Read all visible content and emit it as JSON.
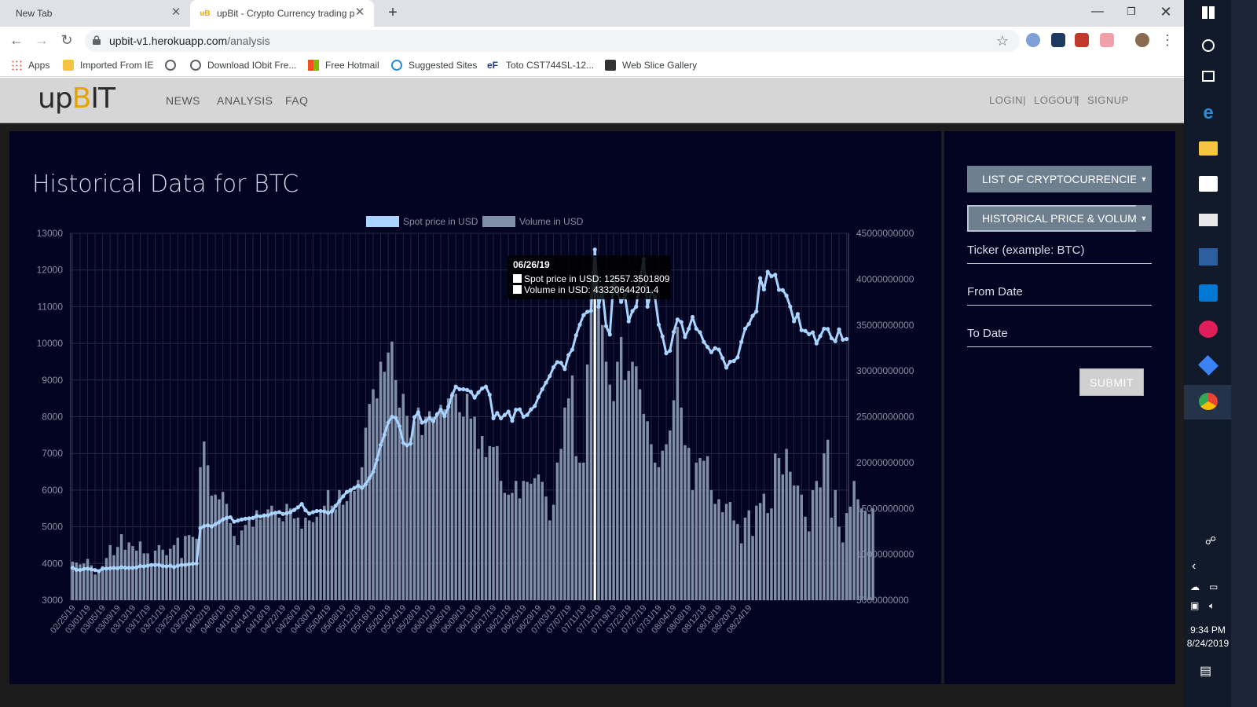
{
  "browser": {
    "tabs": [
      {
        "title": "New Tab"
      },
      {
        "title": "upBit - Crypto Currency trading p"
      }
    ],
    "url_host": "upbit-v1.herokuapp.com",
    "url_path": "/analysis",
    "bookmarks": [
      {
        "label": "Apps"
      },
      {
        "label": "Imported From IE"
      },
      {
        "label": ""
      },
      {
        "label": "Download IObit Fre..."
      },
      {
        "label": "Free Hotmail"
      },
      {
        "label": "Suggested Sites"
      },
      {
        "label": "Toto CST744SL-12..."
      },
      {
        "label": "Web Slice Gallery"
      }
    ]
  },
  "navbar": {
    "logo_up": "up",
    "logo_b": "B",
    "logo_it": "IT",
    "links": [
      "NEWS",
      "ANALYSIS",
      "FAQ"
    ],
    "auth": [
      "LOGIN",
      "LOGOUT",
      "SIGNUP"
    ]
  },
  "chart_panel": {
    "title": "Historical Data for BTC"
  },
  "side_panel": {
    "dropdown1": "LIST OF CRYPTOCURRENCIES",
    "dropdown2": "HISTORICAL PRICE & VOLUME",
    "ticker_placeholder": "Ticker (example: BTC)",
    "from_placeholder": "From Date",
    "to_placeholder": "To Date",
    "submit_label": "SUBMIT"
  },
  "taskbar": {
    "time": "9:34 PM",
    "date": "8/24/2019"
  },
  "colors": {
    "price_line": "#a9d4ff",
    "volume_bar": "#7f8fa6",
    "panel_bg": "#030322",
    "accent": "#e6a400"
  },
  "chart_data": {
    "type": "bar",
    "title": "",
    "legend_position": "top-center",
    "series": [
      {
        "name": "Spot price in USD",
        "type": "line",
        "axis": "left",
        "values": [
          3880,
          3830,
          3820,
          3850,
          3860,
          3840,
          3820,
          3790,
          3860,
          3860,
          3870,
          3880,
          3870,
          3900,
          3880,
          3880,
          3880,
          3890,
          3930,
          3920,
          3940,
          3960,
          3960,
          3960,
          3930,
          3920,
          3940,
          3900,
          3940,
          3960,
          3960,
          3980,
          3990,
          4000,
          4960,
          5020,
          5040,
          5010,
          5070,
          5130,
          5200,
          5240,
          5260,
          5140,
          5170,
          5200,
          5220,
          5230,
          5240,
          5300,
          5280,
          5310,
          5310,
          5360,
          5380,
          5400,
          5350,
          5370,
          5400,
          5460,
          5530,
          5620,
          5450,
          5360,
          5400,
          5430,
          5430,
          5420,
          5380,
          5420,
          5570,
          5700,
          5830,
          5950,
          6000,
          6060,
          6120,
          6060,
          6160,
          6330,
          6500,
          6830,
          7230,
          7510,
          7840,
          8000,
          7970,
          7740,
          7290,
          7220,
          7270,
          7990,
          8120,
          7840,
          7880,
          7970,
          7880,
          8060,
          8190,
          8020,
          8270,
          8580,
          8820,
          8750,
          8750,
          8730,
          8680,
          8520,
          8660,
          8770,
          8820,
          8600,
          7960,
          8100,
          7960,
          8050,
          8140,
          7890,
          8190,
          8200,
          8000,
          8050,
          8200,
          8290,
          8540,
          8750,
          8930,
          9110,
          9350,
          9490,
          9470,
          9300,
          9680,
          9830,
          10220,
          10510,
          10770,
          10860,
          10890,
          12557,
          11000,
          11450,
          10470,
          10240,
          11760,
          11370,
          11130,
          11320,
          10600,
          10880,
          11000,
          11700,
          12300,
          11000,
          11400,
          11260,
          10510,
          10190,
          9730,
          9800,
          10310,
          10650,
          10580,
          10170,
          10400,
          10720,
          10400,
          10300,
          10040,
          9900,
          9760,
          9870,
          9830,
          9600,
          9340,
          9500,
          9520,
          9620,
          10040,
          10400,
          10530,
          10750,
          10870,
          11780,
          11470,
          11950,
          11830,
          11870,
          11460,
          11450,
          11300,
          11000,
          10600,
          10800,
          10360,
          10340,
          10250,
          10300,
          10000,
          10200,
          10400,
          10390,
          10140,
          10060,
          10380,
          10100,
          10120
        ]
      },
      {
        "name": "Volume in USD",
        "type": "bar",
        "axis": "right",
        "values": [
          9200000000,
          9100000000,
          8900000000,
          9000000000,
          9500000000,
          8800000000,
          7800000000,
          8100000000,
          8700000000,
          9600000000,
          11000000000,
          9900000000,
          10800000000,
          12200000000,
          10500000000,
          11300000000,
          10900000000,
          10400000000,
          11400000000,
          10100000000,
          10100000000,
          9000000000,
          10400000000,
          11000000000,
          10500000000,
          9900000000,
          10600000000,
          11000000000,
          11800000000,
          9600000000,
          12000000000,
          12100000000,
          11900000000,
          11700000000,
          19500000000,
          22300000000,
          19700000000,
          16400000000,
          16500000000,
          16000000000,
          16800000000,
          15500000000,
          13400000000,
          12000000000,
          11000000000,
          12600000000,
          13200000000,
          14000000000,
          13000000000,
          14800000000,
          13800000000,
          14200000000,
          14900000000,
          15300000000,
          14600000000,
          14000000000,
          13600000000,
          15500000000,
          15000000000,
          13900000000,
          14000000000,
          12800000000,
          14000000000,
          13700000000,
          13500000000,
          14100000000,
          14500000000,
          15300000000,
          17000000000,
          15300000000,
          14900000000,
          17000000000,
          15400000000,
          15800000000,
          17000000000,
          16900000000,
          18100000000,
          19500000000,
          23800000000,
          26400000000,
          28000000000,
          27000000000,
          31000000000,
          29900000000,
          32000000000,
          33200000000,
          29000000000,
          26000000000,
          27500000000,
          25100000000,
          22700000000,
          24500000000,
          26000000000,
          23000000000,
          25000000000,
          25600000000,
          25000000000,
          25500000000,
          26300000000,
          25800000000,
          27000000000,
          27700000000,
          27500000000,
          25500000000,
          25000000000,
          27500000000,
          24800000000,
          25000000000,
          21500000000,
          22900000000,
          20600000000,
          21800000000,
          21700000000,
          21800000000,
          18000000000,
          16700000000,
          16500000000,
          16700000000,
          18000000000,
          16100000000,
          18000000000,
          17900000000,
          17700000000,
          18300000000,
          18700000000,
          17900000000,
          16300000000,
          13700000000,
          15400000000,
          20000000000,
          21500000000,
          26000000000,
          27000000000,
          29500000000,
          20700000000,
          20000000000,
          20000000000,
          30700000000,
          38500000000,
          43320644201.4,
          38000000000,
          35000000000,
          31000000000,
          28500000000,
          26700000000,
          31000000000,
          33700000000,
          29000000000,
          30000000000,
          31000000000,
          30500000000,
          28000000000,
          25300000000,
          24500000000,
          22000000000,
          20000000000,
          19500000000,
          21300000000,
          22000000000,
          23500000000,
          26800000000,
          34800000000,
          26000000000,
          21900000000,
          21600000000,
          17000000000,
          20000000000,
          20500000000,
          20200000000,
          20700000000,
          17000000000,
          15500000000,
          16000000000,
          14600000000,
          15500000000,
          15700000000,
          13700000000,
          13300000000,
          11200000000,
          14000000000,
          14800000000,
          12000000000,
          15300000000,
          15600000000,
          16600000000,
          14500000000,
          15000000000,
          21000000000,
          20500000000,
          18700000000,
          21500000000,
          19000000000,
          17500000000,
          17500000000,
          16500000000,
          14100000000,
          12500000000,
          17000000000,
          18000000000,
          17300000000,
          21000000000,
          22500000000,
          14000000000,
          17000000000,
          13000000000,
          11300000000,
          14500000000,
          15200000000,
          18000000000,
          16000000000,
          15000000000,
          14700000000,
          14400000000,
          15000000000
        ]
      }
    ],
    "x_tick_labels": [
      "02/25/19",
      "03/01/19",
      "03/05/19",
      "03/09/19",
      "03/13/19",
      "03/17/19",
      "03/21/19",
      "03/25/19",
      "03/29/19",
      "04/02/19",
      "04/06/19",
      "04/10/19",
      "04/14/19",
      "04/18/19",
      "04/22/19",
      "04/26/19",
      "04/30/19",
      "05/04/19",
      "05/08/19",
      "05/12/19",
      "05/16/19",
      "05/20/19",
      "05/24/19",
      "05/28/19",
      "06/01/19",
      "06/05/19",
      "06/09/19",
      "06/13/19",
      "06/17/19",
      "06/21/19",
      "06/25/19",
      "06/29/19",
      "07/03/19",
      "07/07/19",
      "07/11/19",
      "07/15/19",
      "07/19/19",
      "07/23/19",
      "07/27/19",
      "07/31/19",
      "08/04/19",
      "08/08/19",
      "08/12/19",
      "08/16/19",
      "08/20/19",
      "08/24/19"
    ],
    "y_left": {
      "label": "",
      "ylim": [
        3000,
        13000
      ],
      "ticks": [
        3000,
        4000,
        5000,
        6000,
        7000,
        8000,
        9000,
        10000,
        11000,
        12000,
        13000
      ]
    },
    "y_right": {
      "label": "",
      "ylim": [
        5000000000,
        45000000000
      ],
      "ticks": [
        5000000000,
        10000000000,
        15000000000,
        20000000000,
        25000000000,
        30000000000,
        35000000000,
        40000000000,
        45000000000
      ]
    },
    "grid": true,
    "tooltip": {
      "date": "06/26/19",
      "price_text": "Spot price in USD: 12557.3501809",
      "volume_text": "Volume in USD: 43320644201.4"
    }
  }
}
